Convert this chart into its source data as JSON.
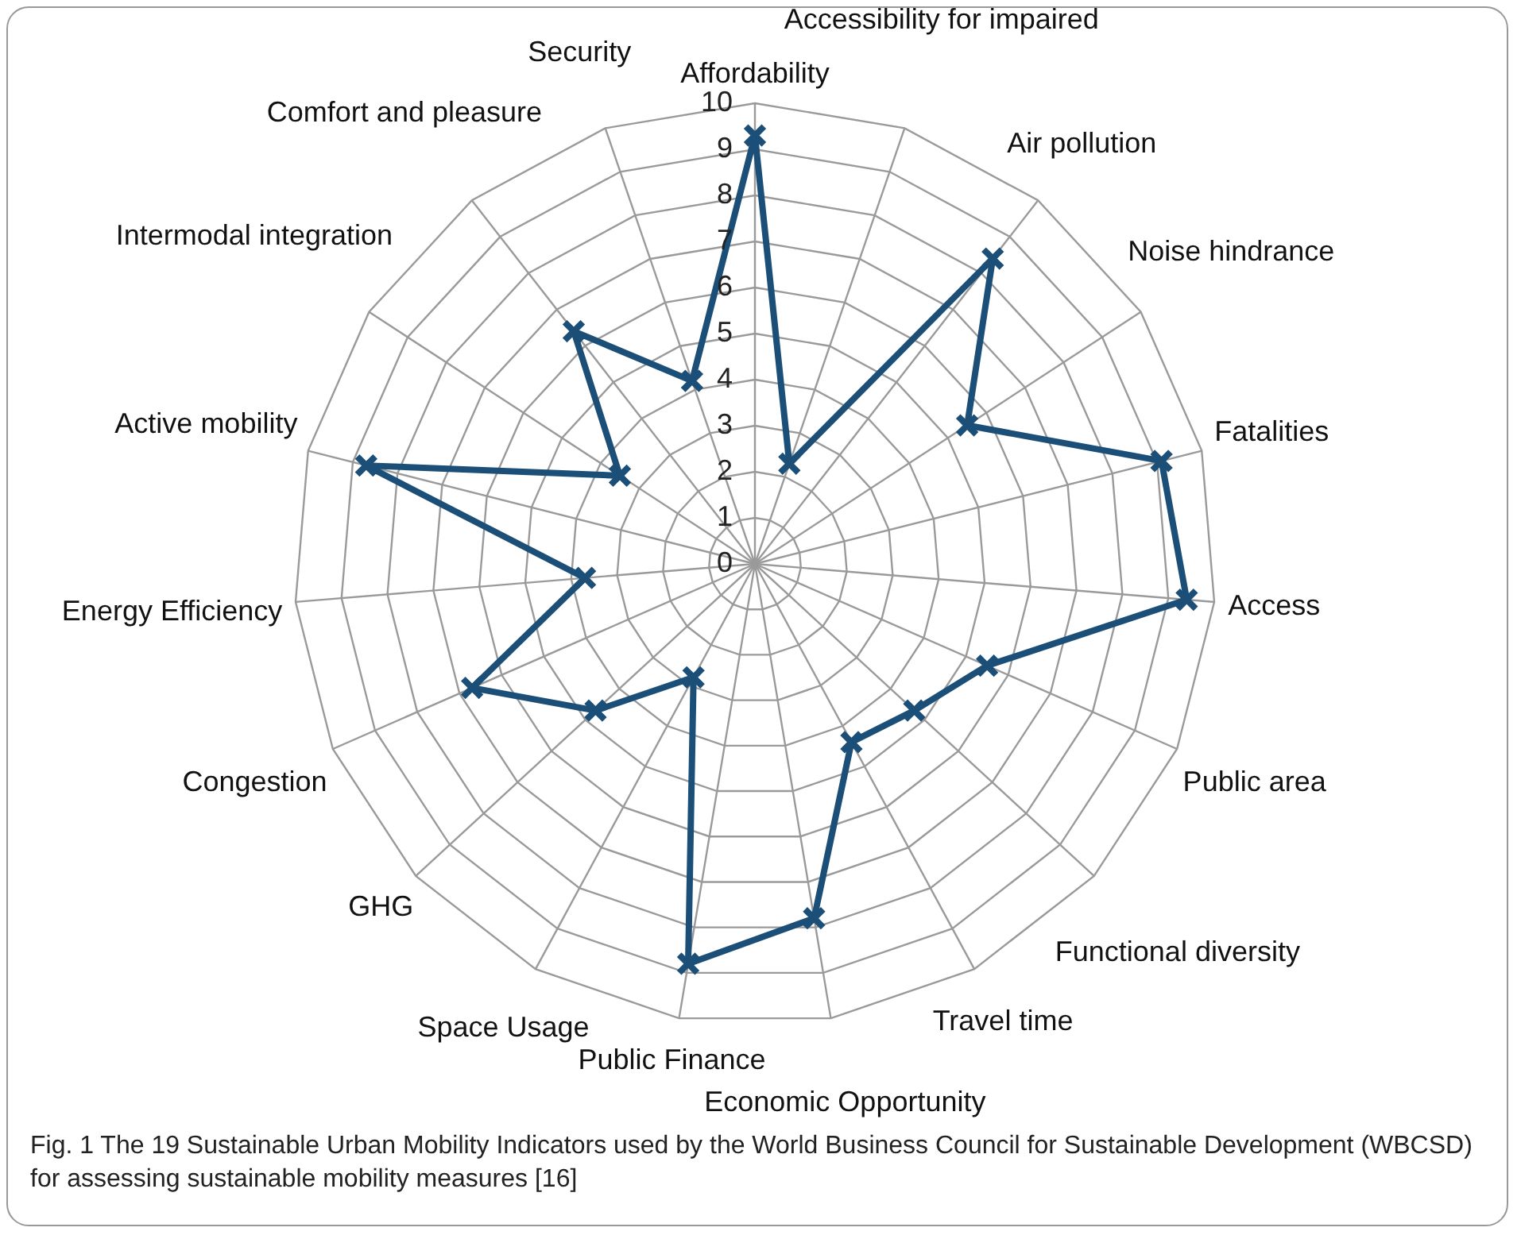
{
  "chart_data": {
    "type": "radar",
    "categories": [
      "Affordability",
      "Accessibility for impaired",
      "Air pollution",
      "Noise hindrance",
      "Fatalities",
      "Access",
      "Public area",
      "Functional diversity",
      "Travel time",
      "Economic Opportunity",
      "Public Finance",
      "Space Usage",
      "GHG",
      "Congestion",
      "Energy Efficiency",
      "Active mobility",
      "Intermodal integration",
      "Comfort and pleasure",
      "Security"
    ],
    "series": [
      {
        "color": "#1c4f78",
        "values": [
          9.3,
          2.3,
          8.4,
          5.5,
          9.1,
          9.4,
          5.5,
          4.7,
          4.4,
          7.8,
          8.8,
          2.8,
          4.7,
          6.7,
          3.7,
          8.7,
          3.5,
          6.4,
          4.2
        ]
      }
    ],
    "ylim": [
      0,
      10
    ],
    "yticks": [
      0,
      1,
      2,
      3,
      4,
      5,
      6,
      7,
      8,
      9,
      10
    ],
    "grid": true,
    "legend": false,
    "marker": "cross",
    "line_style": "solid",
    "annotations": [
      "Fig. 1 The 19 Sustainable Urban Mobility Indicators used by the World Business Council for Sustainable Development (WBCSD) for assessing sustainable mobility measures [16]"
    ]
  }
}
